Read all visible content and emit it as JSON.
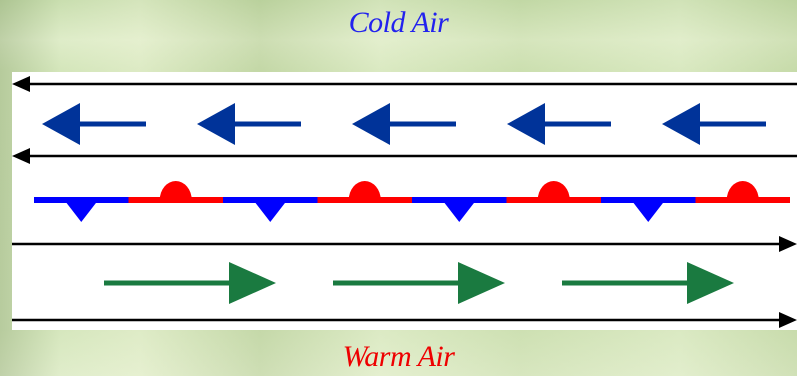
{
  "labels": {
    "cold_air": "Cold Air",
    "warm_air": "Warm Air"
  },
  "colors": {
    "cold_text": "#2222ee",
    "warm_text": "#ee0000",
    "cold_arrow": "#003399",
    "warm_arrow": "#1a7a40",
    "front_blue": "#0000ff",
    "front_red": "#ff0000",
    "streamline": "#000000"
  },
  "diagram": {
    "front_type": "stationary front",
    "cold_arrow_direction": "left",
    "warm_arrow_direction": "right",
    "cold_arrow_count": 5,
    "warm_arrow_count": 3,
    "front_segments": [
      "blue-triangle",
      "red-semicircle",
      "blue-triangle",
      "red-semicircle",
      "blue-triangle",
      "red-semicircle",
      "blue-triangle",
      "red-semicircle"
    ]
  }
}
